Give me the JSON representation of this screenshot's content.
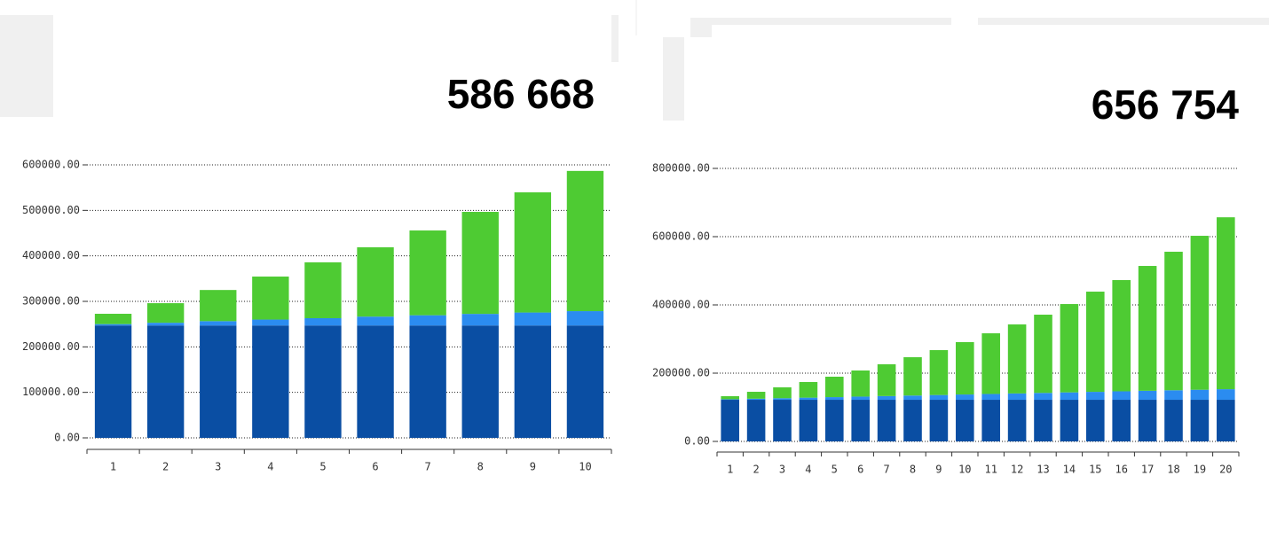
{
  "chart_data": [
    {
      "type": "bar",
      "stacked": true,
      "title": "586 668",
      "categories": [
        "1",
        "2",
        "3",
        "4",
        "5",
        "6",
        "7",
        "8",
        "9",
        "10"
      ],
      "series": [
        {
          "color": "#0a4ea3",
          "values": [
            247000,
            247000,
            247000,
            247000,
            247000,
            247000,
            247000,
            247000,
            247000,
            247000
          ]
        },
        {
          "color": "#2b8cf0",
          "values": [
            3000,
            6000,
            9500,
            13000,
            16000,
            19500,
            22500,
            25500,
            28500,
            31500
          ]
        },
        {
          "color": "#4ecb33",
          "values": [
            22700,
            43000,
            68500,
            94500,
            122700,
            152300,
            186300,
            224200,
            264100,
            308168
          ]
        }
      ],
      "ylim": [
        0,
        600000
      ],
      "yticks": [
        {
          "value": 0,
          "label": "0.00"
        },
        {
          "value": 100000,
          "label": "100000.00"
        },
        {
          "value": 200000,
          "label": "200000.00"
        },
        {
          "value": 300000,
          "label": "300000.00"
        },
        {
          "value": 400000,
          "label": "400000.00"
        },
        {
          "value": 500000,
          "label": "500000.00"
        },
        {
          "value": 600000,
          "label": "600000.00"
        }
      ],
      "grid": true
    },
    {
      "type": "bar",
      "stacked": true,
      "title": "656 754",
      "categories": [
        "1",
        "2",
        "3",
        "4",
        "5",
        "6",
        "7",
        "8",
        "9",
        "10",
        "11",
        "12",
        "13",
        "14",
        "15",
        "16",
        "17",
        "18",
        "19",
        "20"
      ],
      "series": [
        {
          "color": "#0a4ea3",
          "values": [
            122000,
            122000,
            122000,
            122000,
            122000,
            122000,
            122000,
            122000,
            122000,
            122000,
            122000,
            122000,
            122000,
            122000,
            122000,
            122000,
            122000,
            122000,
            122000,
            122000
          ]
        },
        {
          "color": "#2b8cf0",
          "values": [
            1550,
            3100,
            4650,
            6200,
            7750,
            9300,
            10850,
            12400,
            13950,
            15500,
            17050,
            18600,
            20150,
            21700,
            23250,
            24800,
            26350,
            27900,
            29450,
            31000
          ]
        },
        {
          "color": "#4ecb33",
          "values": [
            8950,
            20300,
            31750,
            45800,
            59850,
            76500,
            93150,
            112300,
            131550,
            153400,
            177750,
            202200,
            229250,
            258800,
            293650,
            325900,
            365850,
            405900,
            451050,
            503754
          ]
        }
      ],
      "ylim": [
        0,
        800000
      ],
      "yticks": [
        {
          "value": 0,
          "label": "0.00"
        },
        {
          "value": 200000,
          "label": "200000.00"
        },
        {
          "value": 400000,
          "label": "400000.00"
        },
        {
          "value": 600000,
          "label": "600000.00"
        },
        {
          "value": 800000,
          "label": "800000.00"
        }
      ],
      "grid": true
    }
  ]
}
